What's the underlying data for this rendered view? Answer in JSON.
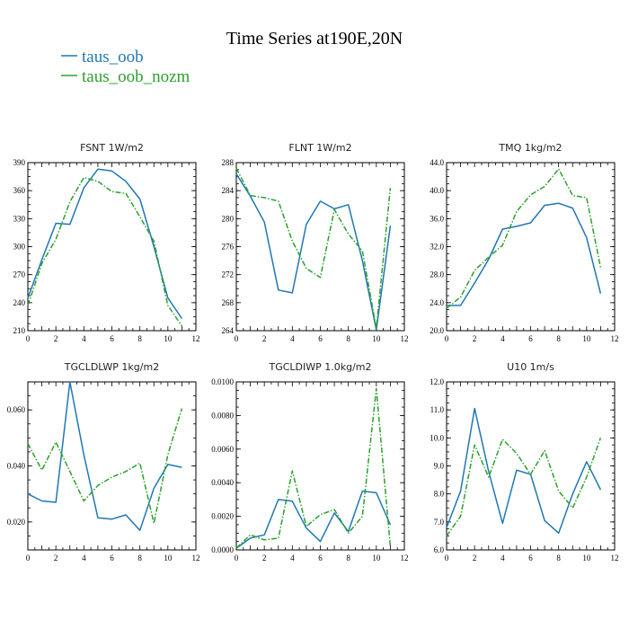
{
  "title": "Time Series at190E,20N",
  "legend": [
    {
      "label": "taus_oob",
      "color": "#1f77b4",
      "dash": false
    },
    {
      "label": "taus_oob_nozm",
      "color": "#2ca02c",
      "dash": true
    }
  ],
  "chart_data": [
    {
      "type": "line",
      "title": "FSNT   1W/m2",
      "x": [
        0,
        1,
        2,
        3,
        4,
        5,
        6,
        7,
        8,
        9,
        10,
        11
      ],
      "xlim": [
        0,
        12
      ],
      "xticks": [
        "0",
        "2",
        "4",
        "6",
        "8",
        "10",
        "12"
      ],
      "ylim": [
        210,
        390
      ],
      "yticks": [
        "210",
        "240",
        "270",
        "300",
        "330",
        "360",
        "390"
      ],
      "series": [
        {
          "name": "taus_oob",
          "values": [
            245,
            286,
            325,
            324,
            363,
            383,
            381,
            370,
            351,
            300,
            245,
            223
          ]
        },
        {
          "name": "taus_oob_nozm",
          "values": [
            237,
            282,
            308,
            348,
            374,
            370,
            359,
            357,
            332,
            306,
            237,
            215
          ]
        }
      ]
    },
    {
      "type": "line",
      "title": "FLNT   1W/m2",
      "x": [
        0,
        1,
        2,
        3,
        4,
        5,
        6,
        7,
        8,
        9,
        10,
        11
      ],
      "xlim": [
        0,
        12
      ],
      "xticks": [
        "0",
        "2",
        "4",
        "6",
        "8",
        "10",
        "12"
      ],
      "ylim": [
        264,
        288
      ],
      "yticks": [
        "264",
        "268",
        "272",
        "276",
        "280",
        "284",
        "288"
      ],
      "series": [
        {
          "name": "taus_oob",
          "values": [
            286.4,
            283.2,
            279.5,
            269.8,
            269.4,
            279.2,
            282.5,
            281.4,
            282.0,
            274.0,
            264.1,
            279.0
          ]
        },
        {
          "name": "taus_oob_nozm",
          "values": [
            287.2,
            283.3,
            283.0,
            282.5,
            276.8,
            272.9,
            271.6,
            281.3,
            277.8,
            275.4,
            264.3,
            284.4
          ]
        }
      ]
    },
    {
      "type": "line",
      "title": "TMQ   1kg/m2",
      "x": [
        0,
        1,
        2,
        3,
        4,
        5,
        6,
        7,
        8,
        9,
        10,
        11
      ],
      "xlim": [
        0,
        12
      ],
      "xticks": [
        "0",
        "2",
        "4",
        "6",
        "8",
        "10",
        "12"
      ],
      "ylim": [
        20,
        44
      ],
      "yticks": [
        "20.0",
        "24.0",
        "28.0",
        "32.0",
        "36.0",
        "40.0",
        "44.0"
      ],
      "series": [
        {
          "name": "taus_oob",
          "values": [
            23.6,
            23.6,
            26.8,
            30.2,
            34.5,
            34.9,
            35.4,
            37.9,
            38.2,
            37.5,
            33.3,
            25.3
          ]
        },
        {
          "name": "taus_oob_nozm",
          "values": [
            23.2,
            24.8,
            28.6,
            30.5,
            32.2,
            37.0,
            39.4,
            40.6,
            43.1,
            39.3,
            39.0,
            29.0
          ]
        }
      ]
    },
    {
      "type": "line",
      "title": "TGCLDLWP   1kg/m2",
      "x": [
        0,
        1,
        2,
        3,
        4,
        5,
        6,
        7,
        8,
        9,
        10,
        11
      ],
      "xlim": [
        0,
        12
      ],
      "xticks": [
        "0",
        "2",
        "4",
        "6",
        "8",
        "10",
        "12"
      ],
      "ylim": [
        0.01,
        0.07
      ],
      "yticks": [
        "0.020",
        "0.040",
        "0.060"
      ],
      "yticksAt": [
        0.02,
        0.04,
        0.06
      ],
      "series": [
        {
          "name": "taus_oob",
          "values": [
            0.03,
            0.0275,
            0.027,
            0.07,
            0.044,
            0.0215,
            0.021,
            0.0225,
            0.017,
            0.032,
            0.0405,
            0.0395
          ]
        },
        {
          "name": "taus_oob_nozm",
          "values": [
            0.048,
            0.0385,
            0.0485,
            0.038,
            0.0275,
            0.033,
            0.036,
            0.038,
            0.041,
            0.0195,
            0.044,
            0.0605
          ]
        }
      ]
    },
    {
      "type": "line",
      "title": "TGCLDIWP   1.0kg/m2",
      "x": [
        0,
        1,
        2,
        3,
        4,
        5,
        6,
        7,
        8,
        9,
        10,
        11
      ],
      "xlim": [
        0,
        12
      ],
      "xticks": [
        "0",
        "2",
        "4",
        "6",
        "8",
        "10",
        "12"
      ],
      "ylim": [
        0,
        0.01
      ],
      "yticks": [
        "0.0000",
        "0.0020",
        "0.0040",
        "0.0060",
        "0.0080",
        "0.0100"
      ],
      "series": [
        {
          "name": "taus_oob",
          "values": [
            0.0001,
            0.0007,
            0.0009,
            0.003,
            0.0029,
            0.0013,
            0.0005,
            0.0022,
            0.0011,
            0.0035,
            0.0034,
            0.0015
          ]
        },
        {
          "name": "taus_oob_nozm",
          "values": [
            0.0001,
            0.0009,
            0.0006,
            0.0007,
            0.0047,
            0.0014,
            0.0021,
            0.0024,
            0.001,
            0.002,
            0.0096,
            0.0002
          ]
        }
      ]
    },
    {
      "type": "line",
      "title": "U10   1m/s",
      "x": [
        0,
        1,
        2,
        3,
        4,
        5,
        6,
        7,
        8,
        9,
        10,
        11
      ],
      "xlim": [
        0,
        12
      ],
      "xticks": [
        "0",
        "2",
        "4",
        "6",
        "8",
        "10",
        "12"
      ],
      "ylim": [
        6,
        12
      ],
      "yticks": [
        "6.0",
        "7.0",
        "8.0",
        "9.0",
        "10.0",
        "11.0",
        "12.0"
      ],
      "series": [
        {
          "name": "taus_oob",
          "values": [
            6.8,
            8.1,
            11.05,
            8.8,
            6.95,
            8.85,
            8.7,
            7.05,
            6.6,
            8.0,
            9.15,
            8.15
          ]
        },
        {
          "name": "taus_oob_nozm",
          "values": [
            6.5,
            7.2,
            9.75,
            8.6,
            9.95,
            9.45,
            8.7,
            9.55,
            8.1,
            7.5,
            8.6,
            10.0
          ]
        }
      ]
    }
  ]
}
